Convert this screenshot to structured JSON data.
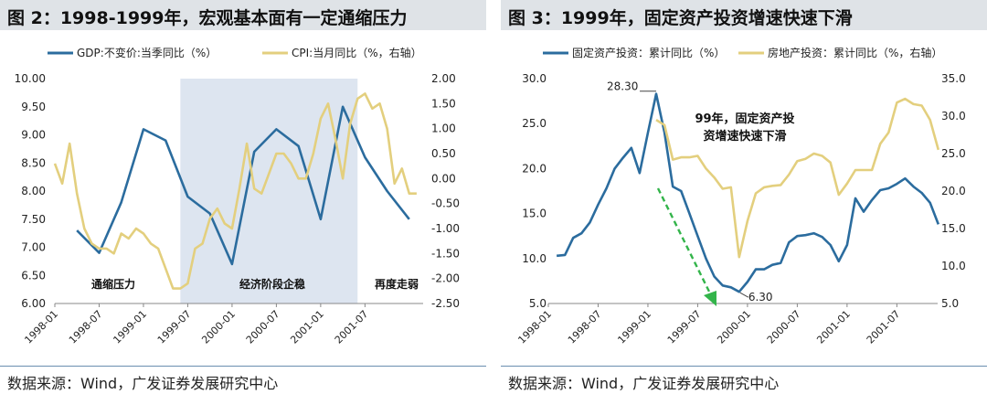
{
  "colors": {
    "gdp_fixed": "#2b6c9e",
    "cpi_realestate": "#e3cf7e",
    "shade": "#dde5f0",
    "arrow": "#33b44a"
  },
  "left": {
    "title": "图 2：1998-1999年，宏观基本面有一定通缩压力",
    "source": "数据来源：Wind，广发证券发展研究中心",
    "chart_data": {
      "type": "line",
      "title": "图 2：1998-1999年，宏观基本面有一定通缩压力",
      "x_ticks": [
        "1998-01",
        "1998-07",
        "1999-01",
        "1999-07",
        "2000-01",
        "2000-07",
        "2001-01",
        "2001-07"
      ],
      "ylim_left": [
        6.0,
        10.0
      ],
      "ylim_right": [
        -2.5,
        2.0
      ],
      "y_ticks_left": [
        "10.00",
        "9.50",
        "9.00",
        "8.50",
        "8.00",
        "7.50",
        "7.00",
        "6.50",
        "6.00"
      ],
      "y_ticks_right": [
        "2.00",
        "1.50",
        "1.00",
        "0.50",
        "0.00",
        "-0.50",
        "-1.00",
        "-1.50",
        "-2.00",
        "-2.50"
      ],
      "series": [
        {
          "name": "GDP:不变价:当季同比（%）",
          "axis": "left",
          "points": [
            [
              3,
              7.3
            ],
            [
              6,
              6.9
            ],
            [
              9,
              7.8
            ],
            [
              12,
              9.1
            ],
            [
              15,
              8.9
            ],
            [
              18,
              7.9
            ],
            [
              21,
              7.6
            ],
            [
              24,
              6.7
            ],
            [
              27,
              8.7
            ],
            [
              30,
              9.1
            ],
            [
              33,
              8.8
            ],
            [
              36,
              7.5
            ],
            [
              39,
              9.5
            ],
            [
              42,
              8.6
            ],
            [
              45,
              8.0
            ],
            [
              48,
              7.5
            ]
          ]
        },
        {
          "name": "CPI:当月同比（%，右轴）",
          "axis": "right",
          "points": [
            [
              0,
              0.3
            ],
            [
              1,
              -0.1
            ],
            [
              2,
              0.7
            ],
            [
              3,
              -0.3
            ],
            [
              4,
              -1.0
            ],
            [
              5,
              -1.3
            ],
            [
              6,
              -1.4
            ],
            [
              7,
              -1.4
            ],
            [
              8,
              -1.5
            ],
            [
              9,
              -1.1
            ],
            [
              10,
              -1.2
            ],
            [
              11,
              -1.0
            ],
            [
              12,
              -1.1
            ],
            [
              13,
              -1.3
            ],
            [
              14,
              -1.4
            ],
            [
              15,
              -1.8
            ],
            [
              16,
              -2.2
            ],
            [
              17,
              -2.2
            ],
            [
              18,
              -2.1
            ],
            [
              19,
              -1.4
            ],
            [
              20,
              -1.3
            ],
            [
              21,
              -0.8
            ],
            [
              22,
              -0.6
            ],
            [
              23,
              -0.9
            ],
            [
              24,
              -1.0
            ],
            [
              25,
              -0.2
            ],
            [
              26,
              0.7
            ],
            [
              27,
              -0.2
            ],
            [
              28,
              -0.3
            ],
            [
              29,
              0.1
            ],
            [
              30,
              0.5
            ],
            [
              31,
              0.5
            ],
            [
              32,
              0.3
            ],
            [
              33,
              0.0
            ],
            [
              34,
              0.0
            ],
            [
              35,
              0.5
            ],
            [
              36,
              1.2
            ],
            [
              37,
              1.5
            ],
            [
              38,
              0.8
            ],
            [
              39,
              0.0
            ],
            [
              40,
              1.1
            ],
            [
              41,
              1.6
            ],
            [
              42,
              1.7
            ],
            [
              43,
              1.4
            ],
            [
              44,
              1.5
            ],
            [
              45,
              1.0
            ],
            [
              46,
              -0.1
            ],
            [
              47,
              0.2
            ],
            [
              48,
              -0.3
            ],
            [
              49,
              -0.3
            ]
          ]
        }
      ],
      "shaded_region": {
        "x_start": 17,
        "x_end": 41
      },
      "annotations": [
        "通缩压力",
        "经济阶段企稳",
        "再度走弱"
      ]
    }
  },
  "right": {
    "title": "图 3：1999年，固定资产投资增速快速下滑",
    "source": "数据来源：Wind，广发证券发展研究中心",
    "chart_data": {
      "type": "line",
      "title": "图 3：1999年，固定资产投资增速快速下滑",
      "x_ticks": [
        "1998-01",
        "1998-07",
        "1999-01",
        "1999-07",
        "2000-01",
        "2000-07",
        "2001-01",
        "2001-07"
      ],
      "ylim_left": [
        5.0,
        30.0
      ],
      "ylim_right": [
        5.0,
        35.0
      ],
      "y_ticks_left": [
        "30.0",
        "25.0",
        "20.0",
        "15.0",
        "10.0",
        "5.0"
      ],
      "y_ticks_right": [
        "35.0",
        "30.0",
        "25.0",
        "20.0",
        "15.0",
        "10.0",
        "5.0"
      ],
      "series": [
        {
          "name": "固定资产投资：累计同比（%）",
          "axis": "left",
          "points": [
            [
              1,
              10.3
            ],
            [
              2,
              10.4
            ],
            [
              3,
              12.3
            ],
            [
              4,
              12.8
            ],
            [
              5,
              14.0
            ],
            [
              6,
              16.0
            ],
            [
              7,
              17.8
            ],
            [
              8,
              20.0
            ],
            [
              9,
              21.2
            ],
            [
              10,
              22.3
            ],
            [
              11,
              19.5
            ],
            [
              12,
              24.0
            ],
            [
              13,
              28.3
            ],
            [
              14,
              24.0
            ],
            [
              15,
              18.0
            ],
            [
              16,
              17.5
            ],
            [
              17,
              15.0
            ],
            [
              18,
              12.5
            ],
            [
              19,
              10.0
            ],
            [
              20,
              8.0
            ],
            [
              21,
              7.0
            ],
            [
              22,
              6.8
            ],
            [
              23,
              6.3
            ],
            [
              24,
              7.4
            ],
            [
              25,
              8.8
            ],
            [
              26,
              8.8
            ],
            [
              27,
              9.3
            ],
            [
              28,
              9.5
            ],
            [
              29,
              11.8
            ],
            [
              30,
              12.5
            ],
            [
              31,
              12.6
            ],
            [
              32,
              12.8
            ],
            [
              33,
              12.4
            ],
            [
              34,
              11.5
            ],
            [
              35,
              9.7
            ],
            [
              36,
              11.5
            ],
            [
              37,
              16.7
            ],
            [
              38,
              15.2
            ],
            [
              39,
              16.5
            ],
            [
              40,
              17.6
            ],
            [
              41,
              17.8
            ],
            [
              42,
              18.3
            ],
            [
              43,
              18.9
            ],
            [
              44,
              18.0
            ],
            [
              45,
              17.3
            ],
            [
              46,
              16.2
            ],
            [
              47,
              13.8
            ]
          ]
        },
        {
          "name": "房地产投资：累计同比（%，右轴）",
          "axis": "right",
          "points": [
            [
              13,
              29.5
            ],
            [
              14,
              28.8
            ],
            [
              15,
              24.2
            ],
            [
              16,
              24.5
            ],
            [
              17,
              24.5
            ],
            [
              18,
              24.7
            ],
            [
              19,
              23.0
            ],
            [
              20,
              21.8
            ],
            [
              21,
              20.3
            ],
            [
              22,
              20.5
            ],
            [
              23,
              11.2
            ],
            [
              24,
              16.0
            ],
            [
              25,
              19.7
            ],
            [
              26,
              20.5
            ],
            [
              27,
              20.7
            ],
            [
              28,
              20.8
            ],
            [
              29,
              22.2
            ],
            [
              30,
              24.0
            ],
            [
              31,
              24.3
            ],
            [
              32,
              25.0
            ],
            [
              33,
              24.7
            ],
            [
              34,
              23.8
            ],
            [
              35,
              19.5
            ],
            [
              36,
              21.0
            ],
            [
              37,
              22.8
            ],
            [
              38,
              22.8
            ],
            [
              39,
              22.8
            ],
            [
              40,
              26.3
            ],
            [
              41,
              27.8
            ],
            [
              42,
              31.8
            ],
            [
              43,
              32.3
            ],
            [
              44,
              31.6
            ],
            [
              45,
              31.4
            ],
            [
              46,
              29.5
            ],
            [
              47,
              25.5
            ]
          ]
        }
      ],
      "annotations": [
        "28.30",
        "6.30",
        "99年，固定资产投",
        "资增速快速下滑"
      ]
    }
  }
}
